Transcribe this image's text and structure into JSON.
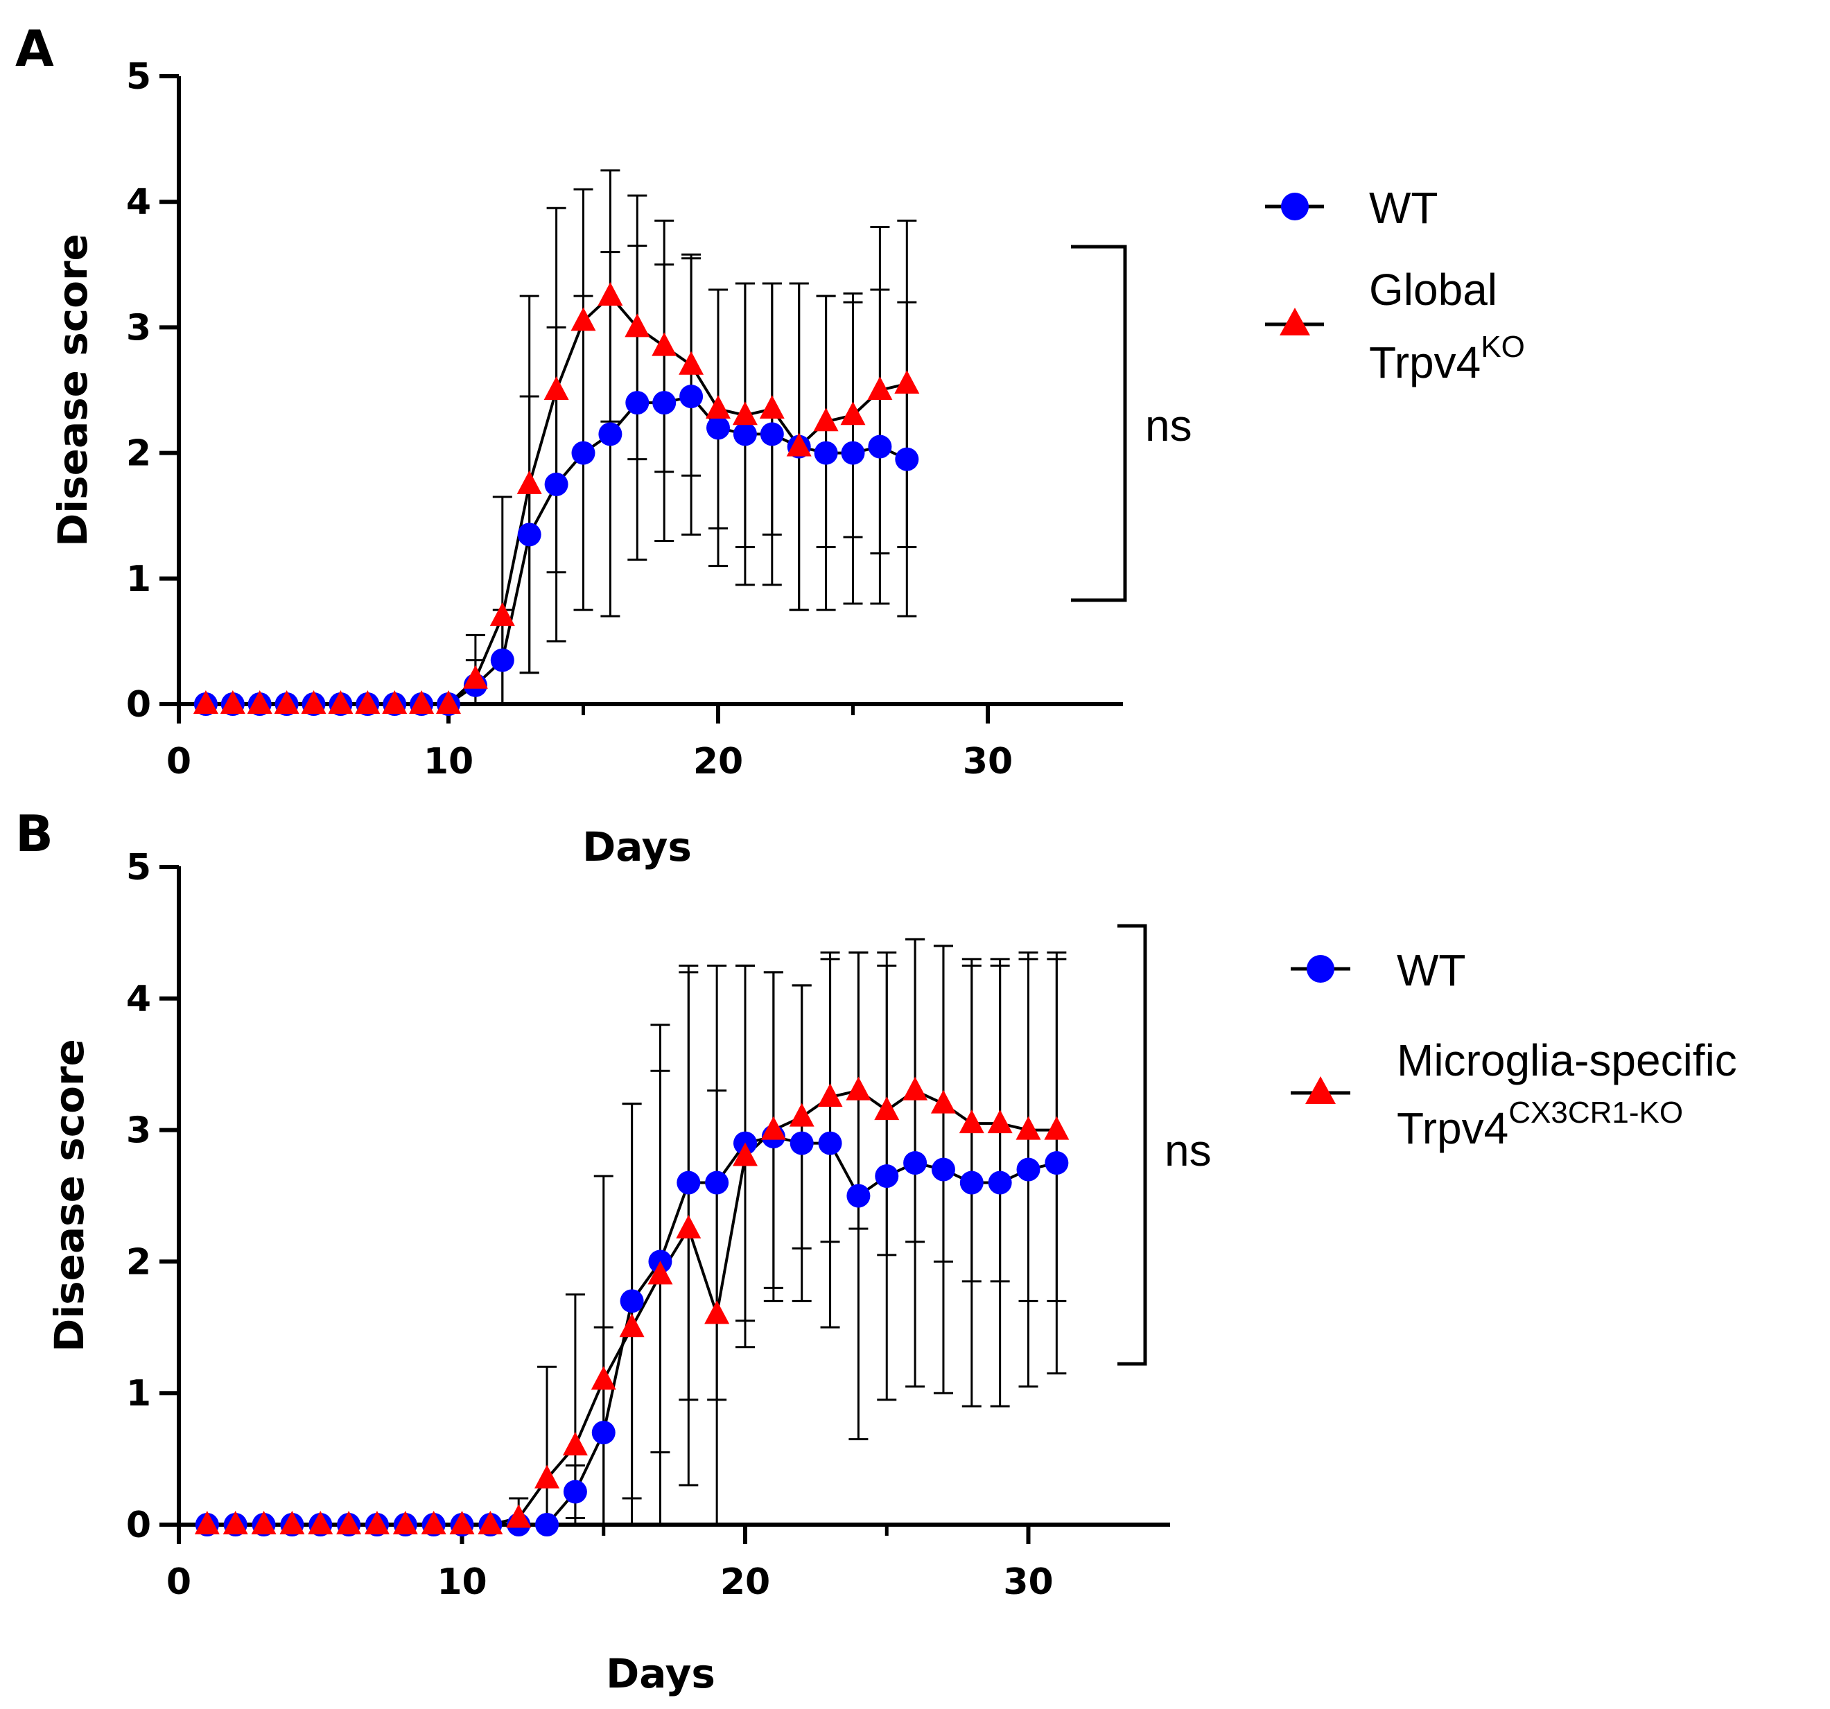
{
  "chart_data": [
    {
      "panel": "A",
      "type": "line",
      "xlabel": "Days",
      "ylabel": "Disease  score",
      "xlim": [
        0,
        35
      ],
      "ylim": [
        0,
        5
      ],
      "xticks": [
        0,
        10,
        20,
        30
      ],
      "yticks": [
        0,
        1,
        2,
        3,
        4,
        5
      ],
      "x": [
        1,
        2,
        3,
        4,
        5,
        6,
        7,
        8,
        9,
        10,
        11,
        12,
        13,
        14,
        15,
        16,
        17,
        18,
        19,
        20,
        21,
        22,
        23,
        24,
        25,
        26,
        27
      ],
      "series": [
        {
          "name": "WT",
          "marker": "circle",
          "color": "#0000ff",
          "values": [
            0,
            0,
            0,
            0,
            0,
            0,
            0,
            0,
            0,
            0,
            0.15,
            0.35,
            1.35,
            1.75,
            2.0,
            2.15,
            2.4,
            2.4,
            2.45,
            2.2,
            2.15,
            2.15,
            2.05,
            2.0,
            2.0,
            2.05,
            1.95
          ],
          "error": [
            0,
            0,
            0,
            0,
            0,
            0,
            0,
            0,
            0,
            0,
            0.2,
            0.4,
            1.1,
            1.25,
            1.25,
            1.45,
            1.25,
            1.1,
            1.1,
            1.1,
            1.2,
            1.2,
            1.3,
            1.25,
            1.2,
            1.25,
            1.25
          ]
        },
        {
          "name": "Global Trpv4KO",
          "legend_lines": [
            "Global",
            "Trpv4",
            "KO"
          ],
          "marker": "triangle",
          "color": "#ff0000",
          "values": [
            0,
            0,
            0,
            0,
            0,
            0,
            0,
            0,
            0,
            0,
            0.2,
            0.7,
            1.75,
            2.5,
            3.05,
            3.25,
            3.0,
            2.85,
            2.7,
            2.35,
            2.3,
            2.35,
            2.05,
            2.25,
            2.3,
            2.5,
            2.55
          ],
          "error": [
            0,
            0,
            0,
            0,
            0,
            0,
            0,
            0,
            0,
            0,
            0.35,
            0.95,
            1.5,
            1.45,
            1.05,
            1.0,
            1.05,
            1.0,
            0.88,
            0.95,
            1.05,
            1.0,
            1.3,
            1.0,
            0.97,
            1.3,
            1.3
          ]
        }
      ],
      "significance": "ns"
    },
    {
      "panel": "B",
      "type": "line",
      "xlabel": "Days",
      "ylabel": "Disease score",
      "xlim": [
        0,
        35
      ],
      "ylim": [
        0,
        5
      ],
      "xticks": [
        0,
        10,
        20,
        30
      ],
      "yticks": [
        0,
        1,
        2,
        3,
        4,
        5
      ],
      "x": [
        1,
        2,
        3,
        4,
        5,
        6,
        7,
        8,
        9,
        10,
        11,
        12,
        13,
        14,
        15,
        16,
        17,
        18,
        19,
        20,
        21,
        22,
        23,
        24,
        25,
        26,
        27,
        28,
        29,
        30,
        31
      ],
      "series": [
        {
          "name": "WT",
          "marker": "circle",
          "color": "#0000ff",
          "values": [
            0,
            0,
            0,
            0,
            0,
            0,
            0,
            0,
            0,
            0,
            0,
            0,
            0,
            0.25,
            0.7,
            1.7,
            2.0,
            2.6,
            2.6,
            2.9,
            2.95,
            2.9,
            2.9,
            2.5,
            2.65,
            2.75,
            2.7,
            2.6,
            2.6,
            2.7,
            2.75
          ],
          "error": [
            0,
            0,
            0,
            0,
            0,
            0,
            0,
            0,
            0,
            0,
            0,
            0,
            0,
            0.2,
            0.8,
            1.5,
            1.45,
            1.65,
            1.65,
            1.35,
            1.25,
            1.2,
            1.4,
            1.85,
            1.7,
            1.7,
            1.7,
            1.7,
            1.7,
            1.65,
            1.6
          ]
        },
        {
          "name": "Microglia-specific Trpv4CX3CR1-KO",
          "legend_lines": [
            "Microglia-specific",
            "Trpv4",
            "CX3CR1-KO"
          ],
          "marker": "triangle",
          "color": "#ff0000",
          "values": [
            0,
            0,
            0,
            0,
            0,
            0,
            0,
            0,
            0,
            0,
            0,
            0.05,
            0.35,
            0.6,
            1.1,
            1.5,
            1.9,
            2.25,
            1.6,
            2.8,
            3.0,
            3.1,
            3.25,
            3.3,
            3.15,
            3.3,
            3.2,
            3.05,
            3.05,
            3.0,
            3.0
          ],
          "error": [
            0,
            0,
            0,
            0,
            0,
            0,
            0,
            0,
            0,
            0,
            0,
            0.15,
            0.85,
            1.15,
            1.55,
            1.7,
            1.9,
            1.95,
            1.7,
            1.45,
            1.2,
            1.0,
            1.1,
            1.05,
            1.1,
            1.15,
            1.2,
            1.2,
            1.2,
            1.3,
            1.3
          ]
        }
      ],
      "significance": "ns"
    }
  ],
  "panels": {
    "a": {
      "letter": "A",
      "legend_wt": "WT",
      "legend_ko_line1": "Global",
      "legend_ko_base": "Trpv4",
      "legend_ko_sup": "KO",
      "sig": "ns"
    },
    "b": {
      "letter": "B",
      "legend_wt": "WT",
      "legend_ko_line1": "Microglia-specific",
      "legend_ko_base": "Trpv4",
      "legend_ko_sup": "CX3CR1-KO",
      "sig": "ns"
    }
  },
  "colors": {
    "wt": "#0000ff",
    "ko": "#ff0000",
    "axis": "#000000"
  }
}
